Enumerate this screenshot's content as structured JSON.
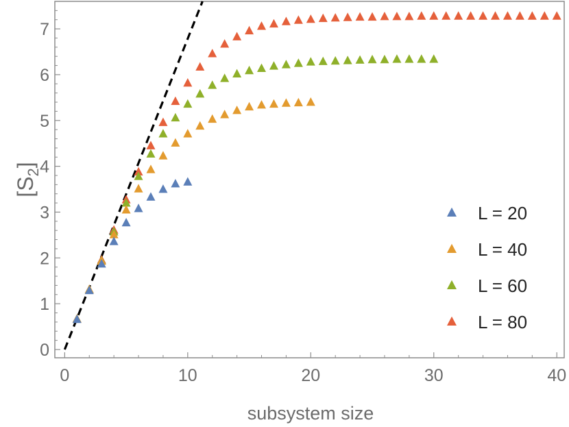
{
  "chart_data": {
    "type": "scatter",
    "xlabel": "subsystem size",
    "ylabel": {
      "base": "[S",
      "sub": "2",
      "close": "]"
    },
    "xlim": [
      -0.8,
      40.6
    ],
    "ylim": [
      -0.18,
      7.6
    ],
    "xticks": [
      0,
      10,
      20,
      30,
      40
    ],
    "yticks": [
      0,
      1,
      2,
      3,
      4,
      5,
      6,
      7
    ],
    "grid": false,
    "legend_position": "bottom-right",
    "marker": "triangle",
    "reference_line": {
      "style": "dashed",
      "color": "#000000",
      "x": [
        0,
        11.2
      ],
      "y": [
        0,
        7.6
      ]
    },
    "series": [
      {
        "name": "L = 20",
        "color": "#5b7fb8",
        "x": [
          1,
          2,
          3,
          4,
          5,
          6,
          7,
          8,
          9,
          10
        ],
        "y": [
          0.65,
          1.28,
          1.86,
          2.35,
          2.76,
          3.07,
          3.32,
          3.49,
          3.61,
          3.65
        ]
      },
      {
        "name": "L = 40",
        "color": "#e39b2f",
        "x": [
          1,
          2,
          3,
          4,
          5,
          6,
          7,
          8,
          9,
          10,
          11,
          12,
          13,
          14,
          15,
          16,
          17,
          18,
          19,
          20
        ],
        "y": [
          0.66,
          1.3,
          1.92,
          2.5,
          3.04,
          3.5,
          3.92,
          4.22,
          4.5,
          4.7,
          4.87,
          5.02,
          5.12,
          5.21,
          5.29,
          5.33,
          5.35,
          5.37,
          5.38,
          5.39
        ]
      },
      {
        "name": "L = 60",
        "color": "#8fb02a",
        "x": [
          1,
          2,
          3,
          4,
          5,
          6,
          7,
          8,
          9,
          10,
          11,
          12,
          13,
          14,
          15,
          16,
          17,
          18,
          19,
          20,
          21,
          22,
          23,
          24,
          25,
          26,
          27,
          28,
          29,
          30
        ],
        "y": [
          0.66,
          1.3,
          1.93,
          2.56,
          3.19,
          3.77,
          4.26,
          4.7,
          5.05,
          5.35,
          5.57,
          5.76,
          5.91,
          6.01,
          6.08,
          6.13,
          6.18,
          6.21,
          6.24,
          6.27,
          6.28,
          6.29,
          6.3,
          6.31,
          6.32,
          6.32,
          6.33,
          6.33,
          6.33,
          6.33
        ]
      },
      {
        "name": "L = 80",
        "color": "#e5603b",
        "x": [
          1,
          2,
          3,
          4,
          5,
          6,
          7,
          8,
          9,
          10,
          11,
          12,
          13,
          14,
          15,
          16,
          17,
          18,
          19,
          20,
          21,
          22,
          23,
          24,
          25,
          26,
          27,
          28,
          29,
          30,
          31,
          32,
          33,
          34,
          35,
          36,
          37,
          38,
          39,
          40
        ],
        "y": [
          0.66,
          1.3,
          1.95,
          2.6,
          3.26,
          3.87,
          4.44,
          4.95,
          5.41,
          5.81,
          6.16,
          6.45,
          6.66,
          6.82,
          6.95,
          7.05,
          7.1,
          7.15,
          7.18,
          7.2,
          7.22,
          7.23,
          7.24,
          7.25,
          7.25,
          7.26,
          7.26,
          7.26,
          7.27,
          7.27,
          7.27,
          7.27,
          7.27,
          7.27,
          7.27,
          7.27,
          7.27,
          7.27,
          7.27,
          7.27
        ]
      }
    ]
  }
}
